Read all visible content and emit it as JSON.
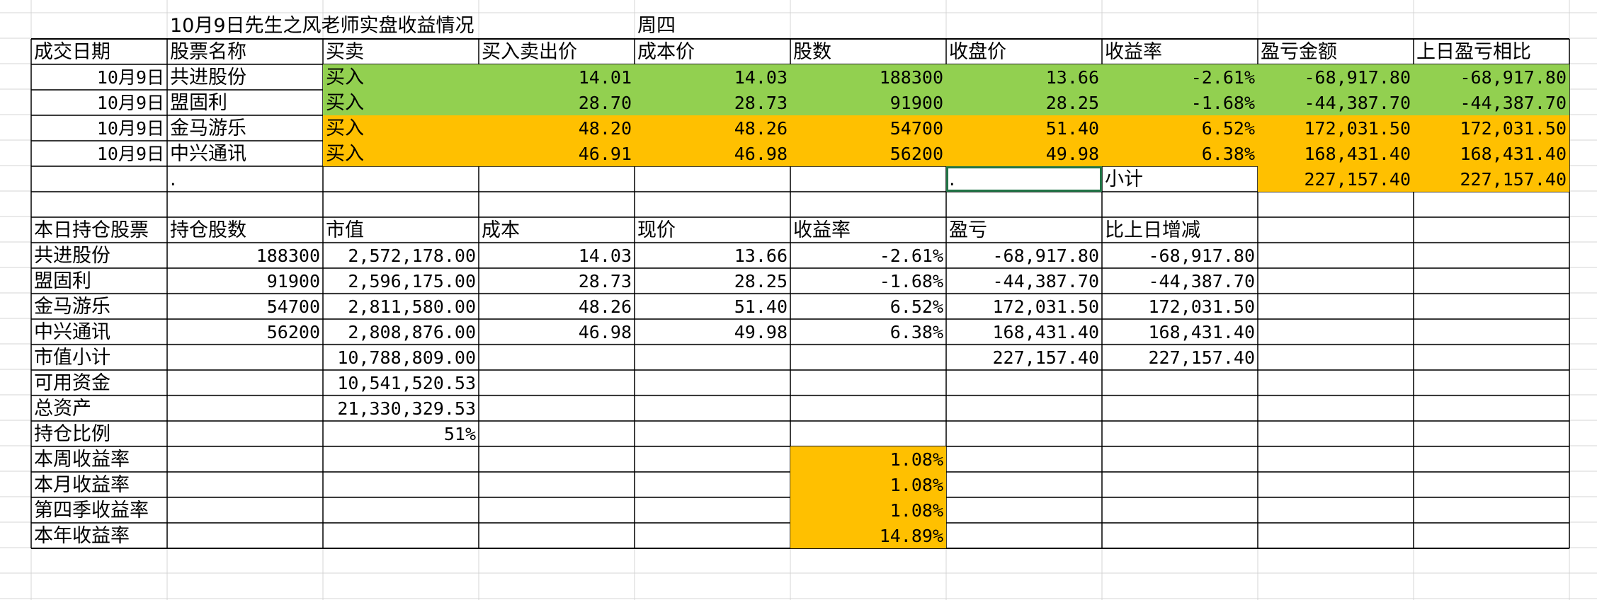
{
  "sheet": {
    "title": "10月9日先生之风老师实盘收益情况",
    "weekday": "周四",
    "colors": {
      "green": "#92d050",
      "orange": "#ffc000",
      "grid_line": "#d4d4d4",
      "border": "#000000",
      "selection": "#217346"
    },
    "trade_table": {
      "headers": [
        "成交日期",
        "股票名称",
        "买卖",
        "买入卖出价",
        "成本价",
        "股数",
        "收盘价",
        "收益率",
        "盈亏金额",
        "上日盈亏相比"
      ],
      "rows": [
        {
          "date": "10月9日",
          "name": "共进股份",
          "side": "买入",
          "price": "14.01",
          "cost": "14.03",
          "shares": "188300",
          "close": "13.66",
          "return": "-2.61%",
          "pnl": "-68,917.80",
          "vs_prev": "-68,917.80",
          "color": "green"
        },
        {
          "date": "10月9日",
          "name": "盟固利",
          "side": "买入",
          "price": "28.70",
          "cost": "28.73",
          "shares": "91900",
          "close": "28.25",
          "return": "-1.68%",
          "pnl": "-44,387.70",
          "vs_prev": "-44,387.70",
          "color": "green"
        },
        {
          "date": "10月9日",
          "name": "金马游乐",
          "side": "买入",
          "price": "48.20",
          "cost": "48.26",
          "shares": "54700",
          "close": "51.40",
          "return": "6.52%",
          "pnl": "172,031.50",
          "vs_prev": "172,031.50",
          "color": "orange"
        },
        {
          "date": "10月9日",
          "name": "中兴通讯",
          "side": "买入",
          "price": "46.91",
          "cost": "46.98",
          "shares": "56200",
          "close": "49.98",
          "return": "6.38%",
          "pnl": "168,431.40",
          "vs_prev": "168,431.40",
          "color": "orange"
        }
      ],
      "subtotal_dot_b": ".",
      "subtotal_dot_g": ".",
      "subtotal_label": "小计",
      "subtotal_pnl": "227,157.40",
      "subtotal_vs_prev": "227,157.40"
    },
    "holdings_table": {
      "headers": [
        "本日持仓股票",
        "持仓股数",
        "市值",
        "成本",
        "现价",
        "收益率",
        "盈亏",
        "比上日增减"
      ],
      "rows": [
        {
          "name": "共进股份",
          "shares": "188300",
          "value": "2,572,178.00",
          "cost": "14.03",
          "price": "13.66",
          "return": "-2.61%",
          "pnl": "-68,917.80",
          "delta": "-68,917.80"
        },
        {
          "name": "盟固利",
          "shares": "91900",
          "value": "2,596,175.00",
          "cost": "28.73",
          "price": "28.25",
          "return": "-1.68%",
          "pnl": "-44,387.70",
          "delta": "-44,387.70"
        },
        {
          "name": "金马游乐",
          "shares": "54700",
          "value": "2,811,580.00",
          "cost": "48.26",
          "price": "51.40",
          "return": "6.52%",
          "pnl": "172,031.50",
          "delta": "172,031.50"
        },
        {
          "name": "中兴通讯",
          "shares": "56200",
          "value": "2,808,876.00",
          "cost": "46.98",
          "price": "49.98",
          "return": "6.38%",
          "pnl": "168,431.40",
          "delta": "168,431.40"
        }
      ],
      "market_value_subtotal": {
        "label": "市值小计",
        "value": "10,788,809.00",
        "pnl": "227,157.40",
        "delta": "227,157.40"
      },
      "available_cash": {
        "label": "可用资金",
        "value": "10,541,520.53"
      },
      "total_assets": {
        "label": "总资产",
        "value": "21,330,329.53"
      },
      "position_ratio": {
        "label": "持仓比例",
        "value": "51%"
      },
      "returns": [
        {
          "label": "本周收益率",
          "value": "1.08%"
        },
        {
          "label": "本月收益率",
          "value": "1.08%"
        },
        {
          "label": "第四季收益率",
          "value": "1.08%"
        },
        {
          "label": "本年收益率",
          "value": "14.89%"
        }
      ]
    }
  }
}
